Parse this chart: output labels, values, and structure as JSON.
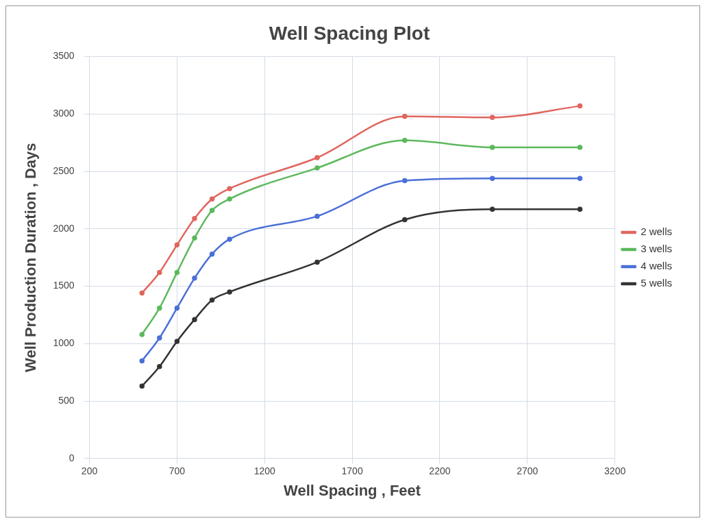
{
  "chart_data": {
    "type": "line",
    "title": "Well Spacing Plot",
    "xlabel": "Well Spacing , Feet",
    "ylabel": "Well Production Duration , Days",
    "x": [
      500,
      600,
      700,
      800,
      900,
      1000,
      1500,
      2000,
      2500,
      3000
    ],
    "series": [
      {
        "name": "2 wells",
        "color": "#e0665e",
        "values": [
          1440,
          1620,
          1860,
          2090,
          2260,
          2350,
          2620,
          2980,
          2970,
          3070
        ]
      },
      {
        "name": "3 wells",
        "color": "#5cb85c",
        "values": [
          1080,
          1310,
          1620,
          1920,
          2160,
          2260,
          2530,
          2770,
          2710,
          2710
        ]
      },
      {
        "name": "4 wells",
        "color": "#4a6fd8",
        "values": [
          850,
          1050,
          1310,
          1570,
          1780,
          1910,
          2110,
          2420,
          2440,
          2440
        ]
      },
      {
        "name": "5 wells",
        "color": "#333333",
        "values": [
          630,
          800,
          1020,
          1210,
          1380,
          1450,
          1710,
          2080,
          2170,
          2170
        ]
      }
    ],
    "xlim": [
      200,
      3200
    ],
    "xticks": [
      200,
      700,
      1200,
      1700,
      2200,
      2700,
      3200
    ],
    "ylim": [
      0,
      3500
    ],
    "yticks": [
      0,
      500,
      1000,
      1500,
      2000,
      2500,
      3000,
      3500
    ],
    "grid": true,
    "legend": "right",
    "marker": "circle",
    "line_style": "solid"
  }
}
